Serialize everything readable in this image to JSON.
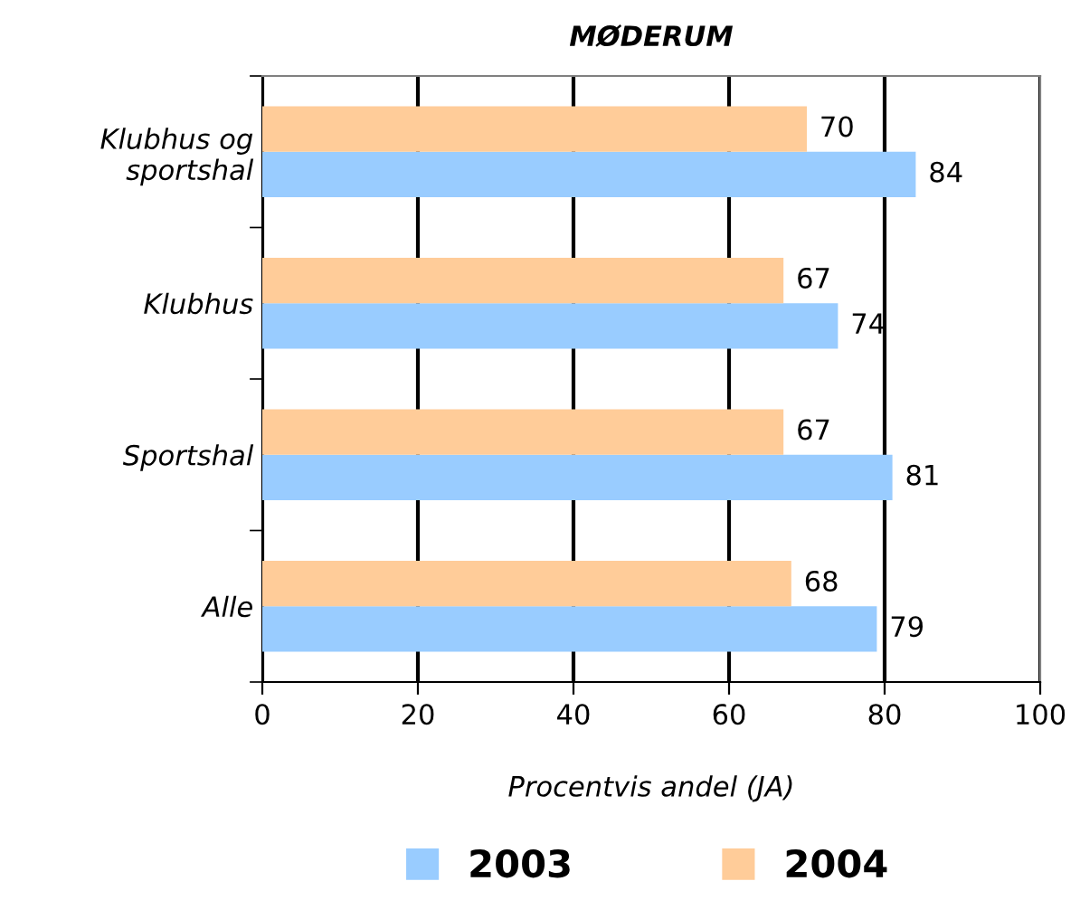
{
  "chart_data": {
    "type": "bar",
    "orientation": "horizontal",
    "title": "MØDERUM",
    "xlabel": "Procentvis andel (JA)",
    "categories": [
      "Klubhus og\nsportshal",
      "Klubhus",
      "Sportshal",
      "Alle"
    ],
    "series": [
      {
        "name": "2003",
        "color": "#99ccff",
        "values": [
          84,
          74,
          81,
          79
        ]
      },
      {
        "name": "2004",
        "color": "#ffcc99",
        "values": [
          70,
          67,
          67,
          68
        ]
      }
    ],
    "xlim": [
      0,
      100
    ],
    "xticks": [
      0,
      20,
      40,
      60,
      80,
      100
    ],
    "grid": "x",
    "legend": "bottom",
    "data_labels": true
  }
}
